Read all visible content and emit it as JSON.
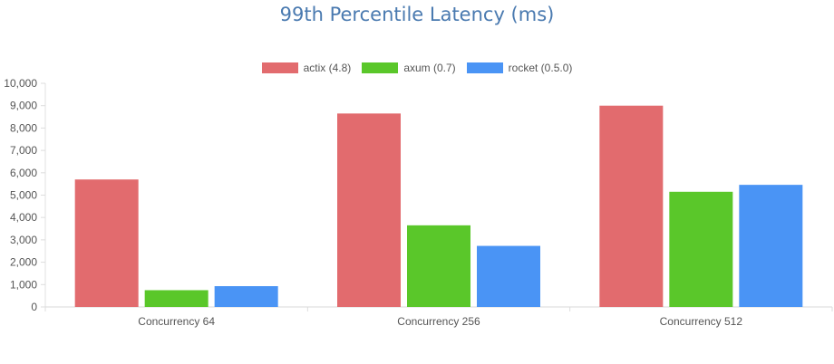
{
  "chart_data": {
    "type": "bar",
    "title": "99th Percentile Latency (ms)",
    "categories": [
      "Concurrency 64",
      "Concurrency 256",
      "Concurrency 512"
    ],
    "series": [
      {
        "name": "actix (4.8)",
        "color": "#e26b6e",
        "values": [
          5700,
          8650,
          9000
        ]
      },
      {
        "name": "axum (0.7)",
        "color": "#5ac72a",
        "values": [
          750,
          3650,
          5150
        ]
      },
      {
        "name": "rocket (0.5.0)",
        "color": "#4a94f5",
        "values": [
          930,
          2730,
          5460
        ]
      }
    ],
    "ylim": [
      0,
      10000
    ],
    "yticks": [
      "0",
      "1,000",
      "2,000",
      "3,000",
      "4,000",
      "5,000",
      "6,000",
      "7,000",
      "8,000",
      "9,000",
      "10,000"
    ],
    "grid": false,
    "legend_position": "top"
  }
}
